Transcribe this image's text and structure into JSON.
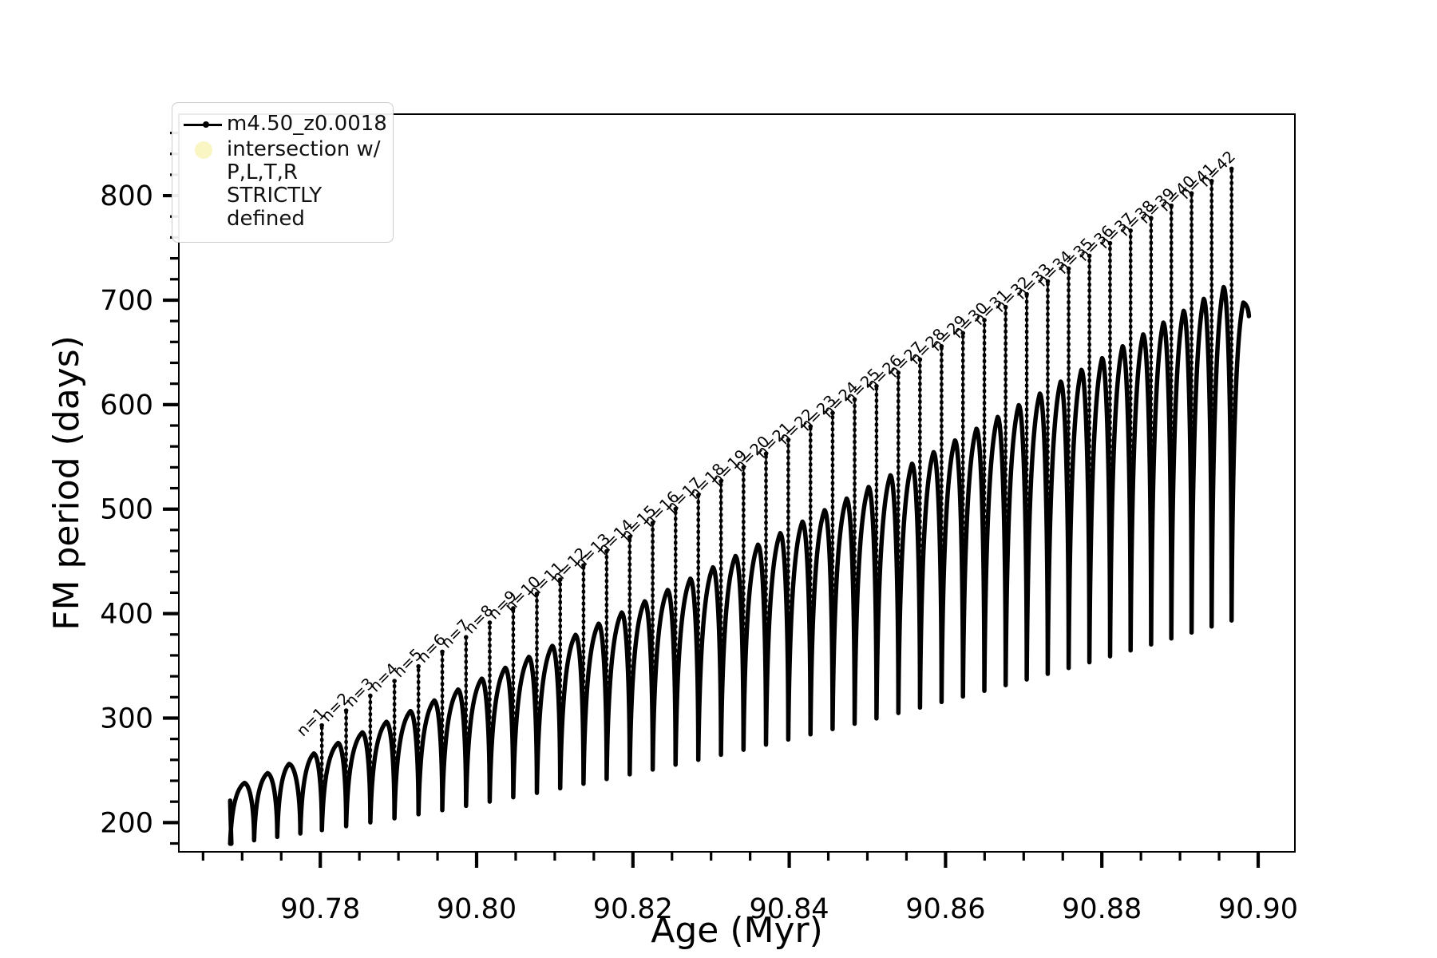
{
  "figure": {
    "background": "#ffffff"
  },
  "legend": {
    "items": [
      {
        "marker": "line-dot-icon",
        "color": "#000000",
        "label": "m4.50_z0.0018"
      },
      {
        "marker": "filled-circle-icon",
        "color": "#f9f6c3",
        "label_lines": [
          "intersection w/ P,L,T,R",
          "STRICTLY defined"
        ]
      }
    ]
  },
  "chart_data": {
    "type": "line",
    "series": [
      {
        "name": "m4.50_z0.0018",
        "color": "#000000",
        "style": "points-with-line"
      }
    ],
    "title": "",
    "xlabel": "Age (Myr)",
    "ylabel": "FM period (days)",
    "xlim": [
      90.7619,
      90.9047
    ],
    "ylim": [
      172,
      878
    ],
    "grid": false,
    "legend_position": "upper left",
    "xticks": {
      "values": [
        90.78,
        90.8,
        90.82,
        90.84,
        90.86,
        90.88,
        90.9
      ],
      "labels": [
        "90.78",
        "90.80",
        "90.82",
        "90.84",
        "90.86",
        "90.88",
        "90.90"
      ]
    },
    "yticks": {
      "values": [
        200,
        300,
        400,
        500,
        600,
        700,
        800
      ],
      "labels": [
        "200",
        "300",
        "400",
        "500",
        "600",
        "700",
        "800"
      ]
    },
    "x_minor_step": 0.005,
    "y_minor_step": 20,
    "annotation_prefix": "n=",
    "description": "Fundamental-mode period vs age; arcs between deep dips, with narrow vertical spike excursions at each dip annotated n=1..42 whose tops rise along a diagonal line.",
    "start": {
      "age": 90.76847,
      "value_top": 221.0,
      "value_bottom": 179.7
    },
    "pre_dips": [
      {
        "age": 90.76847,
        "min": 179.7
      },
      {
        "age": 90.77153,
        "min": 183.1
      },
      {
        "age": 90.77449,
        "min": 186.3
      },
      {
        "age": 90.77745,
        "min": 189.6
      }
    ],
    "pre_arc_peaks": [
      {
        "age": 90.7703,
        "value": 238.0
      },
      {
        "age": 90.77326,
        "value": 247.3
      },
      {
        "age": 90.77602,
        "value": 256.1
      }
    ],
    "resonances": [
      {
        "n": 1,
        "age": 90.7802,
        "spike_top": 293.0,
        "min": 192.8,
        "arc_peak": 266.1
      },
      {
        "n": 2,
        "age": 90.78331,
        "spike_top": 307.2,
        "min": 196.5,
        "arc_peak": 276.2
      },
      {
        "n": 3,
        "age": 90.7864,
        "spike_top": 321.4,
        "min": 200.2,
        "arc_peak": 286.3
      },
      {
        "n": 4,
        "age": 90.78949,
        "spike_top": 335.5,
        "min": 204.1,
        "arc_peak": 296.5
      },
      {
        "n": 5,
        "age": 90.79256,
        "spike_top": 349.5,
        "min": 208.0,
        "arc_peak": 306.7
      },
      {
        "n": 6,
        "age": 90.79561,
        "spike_top": 363.5,
        "min": 211.9,
        "arc_peak": 316.9
      },
      {
        "n": 7,
        "age": 90.79865,
        "spike_top": 377.4,
        "min": 216.0,
        "arc_peak": 327.3
      },
      {
        "n": 8,
        "age": 90.80168,
        "spike_top": 391.3,
        "min": 220.1,
        "arc_peak": 337.7
      },
      {
        "n": 9,
        "age": 90.80469,
        "spike_top": 405.1,
        "min": 224.3,
        "arc_peak": 348.1
      },
      {
        "n": 10,
        "age": 90.80771,
        "spike_top": 418.9,
        "min": 228.5,
        "arc_peak": 358.6
      },
      {
        "n": 11,
        "age": 90.8107,
        "spike_top": 432.5,
        "min": 232.8,
        "arc_peak": 369.1
      },
      {
        "n": 12,
        "age": 90.81368,
        "spike_top": 446.2,
        "min": 237.2,
        "arc_peak": 379.7
      },
      {
        "n": 13,
        "age": 90.81664,
        "spike_top": 459.7,
        "min": 241.7,
        "arc_peak": 390.4
      },
      {
        "n": 14,
        "age": 90.81959,
        "spike_top": 473.2,
        "min": 246.2,
        "arc_peak": 401.1
      },
      {
        "n": 15,
        "age": 90.82253,
        "spike_top": 486.7,
        "min": 250.8,
        "arc_peak": 411.8
      },
      {
        "n": 16,
        "age": 90.82546,
        "spike_top": 500.1,
        "min": 255.4,
        "arc_peak": 422.6
      },
      {
        "n": 17,
        "age": 90.82837,
        "spike_top": 513.4,
        "min": 260.1,
        "arc_peak": 433.4
      },
      {
        "n": 18,
        "age": 90.83127,
        "spike_top": 526.7,
        "min": 264.9,
        "arc_peak": 444.2
      },
      {
        "n": 19,
        "age": 90.83415,
        "spike_top": 539.9,
        "min": 269.7,
        "arc_peak": 455.1
      },
      {
        "n": 20,
        "age": 90.83703,
        "spike_top": 553.0,
        "min": 274.6,
        "arc_peak": 466.0
      },
      {
        "n": 21,
        "age": 90.83988,
        "spike_top": 566.1,
        "min": 279.5,
        "arc_peak": 477.0
      },
      {
        "n": 22,
        "age": 90.84272,
        "spike_top": 579.1,
        "min": 284.5,
        "arc_peak": 488.0
      },
      {
        "n": 23,
        "age": 90.84555,
        "spike_top": 592.0,
        "min": 289.5,
        "arc_peak": 499.0
      },
      {
        "n": 24,
        "age": 90.84837,
        "spike_top": 604.9,
        "min": 294.6,
        "arc_peak": 510.1
      },
      {
        "n": 25,
        "age": 90.85117,
        "spike_top": 617.7,
        "min": 299.7,
        "arc_peak": 521.2
      },
      {
        "n": 26,
        "age": 90.85396,
        "spike_top": 630.5,
        "min": 304.9,
        "arc_peak": 532.3
      },
      {
        "n": 27,
        "age": 90.85673,
        "spike_top": 643.2,
        "min": 310.1,
        "arc_peak": 543.4
      },
      {
        "n": 28,
        "age": 90.85949,
        "spike_top": 655.8,
        "min": 315.4,
        "arc_peak": 554.5
      },
      {
        "n": 29,
        "age": 90.86223,
        "spike_top": 668.4,
        "min": 320.7,
        "arc_peak": 565.7
      },
      {
        "n": 30,
        "age": 90.86497,
        "spike_top": 680.9,
        "min": 326.1,
        "arc_peak": 576.9
      },
      {
        "n": 31,
        "age": 90.86769,
        "spike_top": 693.3,
        "min": 331.5,
        "arc_peak": 588.2
      },
      {
        "n": 32,
        "age": 90.87039,
        "spike_top": 705.7,
        "min": 337.0,
        "arc_peak": 599.5
      },
      {
        "n": 33,
        "age": 90.87308,
        "spike_top": 718.0,
        "min": 342.4,
        "arc_peak": 610.6
      },
      {
        "n": 34,
        "age": 90.87575,
        "spike_top": 730.2,
        "min": 348.0,
        "arc_peak": 622.0
      },
      {
        "n": 35,
        "age": 90.87841,
        "spike_top": 742.4,
        "min": 353.5,
        "arc_peak": 633.3
      },
      {
        "n": 36,
        "age": 90.88105,
        "spike_top": 754.5,
        "min": 359.1,
        "arc_peak": 644.5
      },
      {
        "n": 37,
        "age": 90.88368,
        "spike_top": 766.5,
        "min": 364.8,
        "arc_peak": 655.9
      },
      {
        "n": 38,
        "age": 90.8863,
        "spike_top": 778.5,
        "min": 370.5,
        "arc_peak": 667.2
      },
      {
        "n": 39,
        "age": 90.88889,
        "spike_top": 790.4,
        "min": 376.2,
        "arc_peak": 678.5
      },
      {
        "n": 40,
        "age": 90.89148,
        "spike_top": 802.2,
        "min": 381.9,
        "arc_peak": 689.8
      },
      {
        "n": 41,
        "age": 90.89405,
        "spike_top": 814.0,
        "min": 387.7,
        "arc_peak": 701.2
      },
      {
        "n": 42,
        "age": 90.8966,
        "spike_top": 825.7,
        "min": 393.4,
        "arc_peak": 712.5
      }
    ],
    "tail": {
      "end_age": 90.8981,
      "end_value": 697.7
    }
  }
}
